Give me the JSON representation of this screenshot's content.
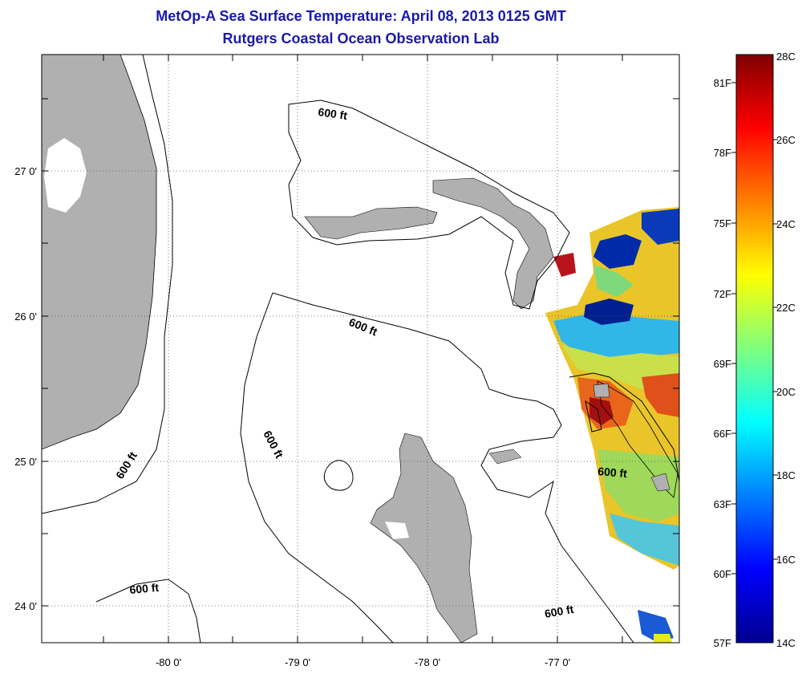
{
  "title": "MetOp-A Sea Surface Temperature:  April 08, 2013 0125 GMT",
  "subtitle": "Rutgers Coastal Ocean Observation Lab",
  "map": {
    "lat_labels": [
      "27 0'",
      "26 0'",
      "25 0'",
      "24 0'"
    ],
    "lon_labels": [
      "-80 0'",
      "-79 0'",
      "-78 0'",
      "-77 0'"
    ],
    "contour_label": "600 ft",
    "land_color": "#b0b0b0",
    "grid": true
  },
  "colorbar": {
    "fahrenheit_labels": [
      "81F",
      "78F",
      "75F",
      "72F",
      "69F",
      "66F",
      "63F",
      "60F",
      "57F"
    ],
    "celsius_labels": [
      "28C",
      "26C",
      "24C",
      "22C",
      "20C",
      "18C",
      "16C",
      "14C"
    ],
    "colormap": "jet",
    "min_c": 14,
    "max_c": 28
  }
}
